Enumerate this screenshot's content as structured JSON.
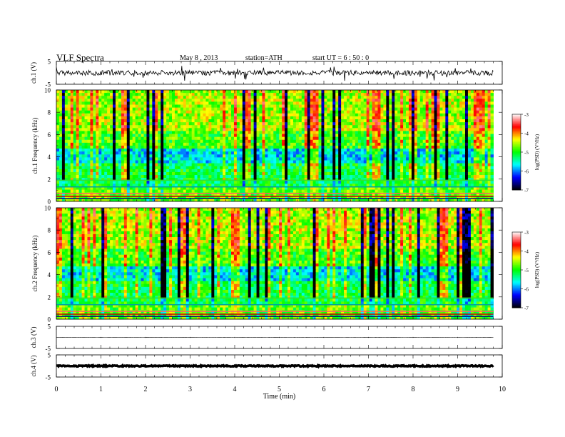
{
  "header": {
    "title": "VLF  Spectra",
    "date": "May 8  , 2013",
    "station": "station=ATH",
    "start": "start  UT  =   6  : 50 : 0"
  },
  "colorbar": {
    "label": "log(PSD) (V²/Hz)",
    "ticks": [
      "-3",
      "-4",
      "-5",
      "-6",
      "-7"
    ]
  },
  "chart_data": [
    {
      "type": "line",
      "name": "waveform-ch1",
      "ylabel": "ch.1 (V)",
      "ylim": [
        -5,
        5
      ],
      "yticks": [
        "5",
        "-5"
      ],
      "baseline": 0,
      "spike_range": [
        -4,
        4
      ]
    },
    {
      "type": "heatmap",
      "name": "spectrogram-ch1",
      "ylabel": "ch.1 Frequency (kHz)",
      "ylim": [
        0,
        10
      ],
      "yticks": [
        "0",
        "2",
        "4",
        "6",
        "8",
        "10"
      ],
      "z_range": [
        -7,
        -3
      ],
      "colorscale": [
        "#000000",
        "#0000ff",
        "#00ffff",
        "#00ff00",
        "#ffff00",
        "#ff0000",
        "#ffffff"
      ]
    },
    {
      "type": "heatmap",
      "name": "spectrogram-ch2",
      "ylabel": "ch.2 Frequency (kHz)",
      "ylim": [
        0,
        10
      ],
      "yticks": [
        "0",
        "2",
        "4",
        "6",
        "8",
        "10"
      ],
      "z_range": [
        -7,
        -3
      ],
      "colorscale": [
        "#000000",
        "#0000ff",
        "#00ffff",
        "#00ff00",
        "#ffff00",
        "#ff0000",
        "#ffffff"
      ]
    },
    {
      "type": "line",
      "name": "waveform-ch3",
      "ylabel": "ch.3 (V)",
      "ylim": [
        -5,
        5
      ],
      "yticks": [
        "5",
        "-5"
      ],
      "baseline": 0
    },
    {
      "type": "line",
      "name": "waveform-ch4",
      "ylabel": "ch.4 (V)",
      "ylim": [
        -5,
        5
      ],
      "yticks": [
        "5",
        "-5"
      ],
      "baseline": 0
    }
  ],
  "xaxis": {
    "label": "Time  (min)",
    "xlim": [
      0,
      10
    ],
    "ticks": [
      "0",
      "1",
      "2",
      "3",
      "4",
      "5",
      "6",
      "7",
      "8",
      "9",
      "10"
    ],
    "data_end": 9.8
  }
}
